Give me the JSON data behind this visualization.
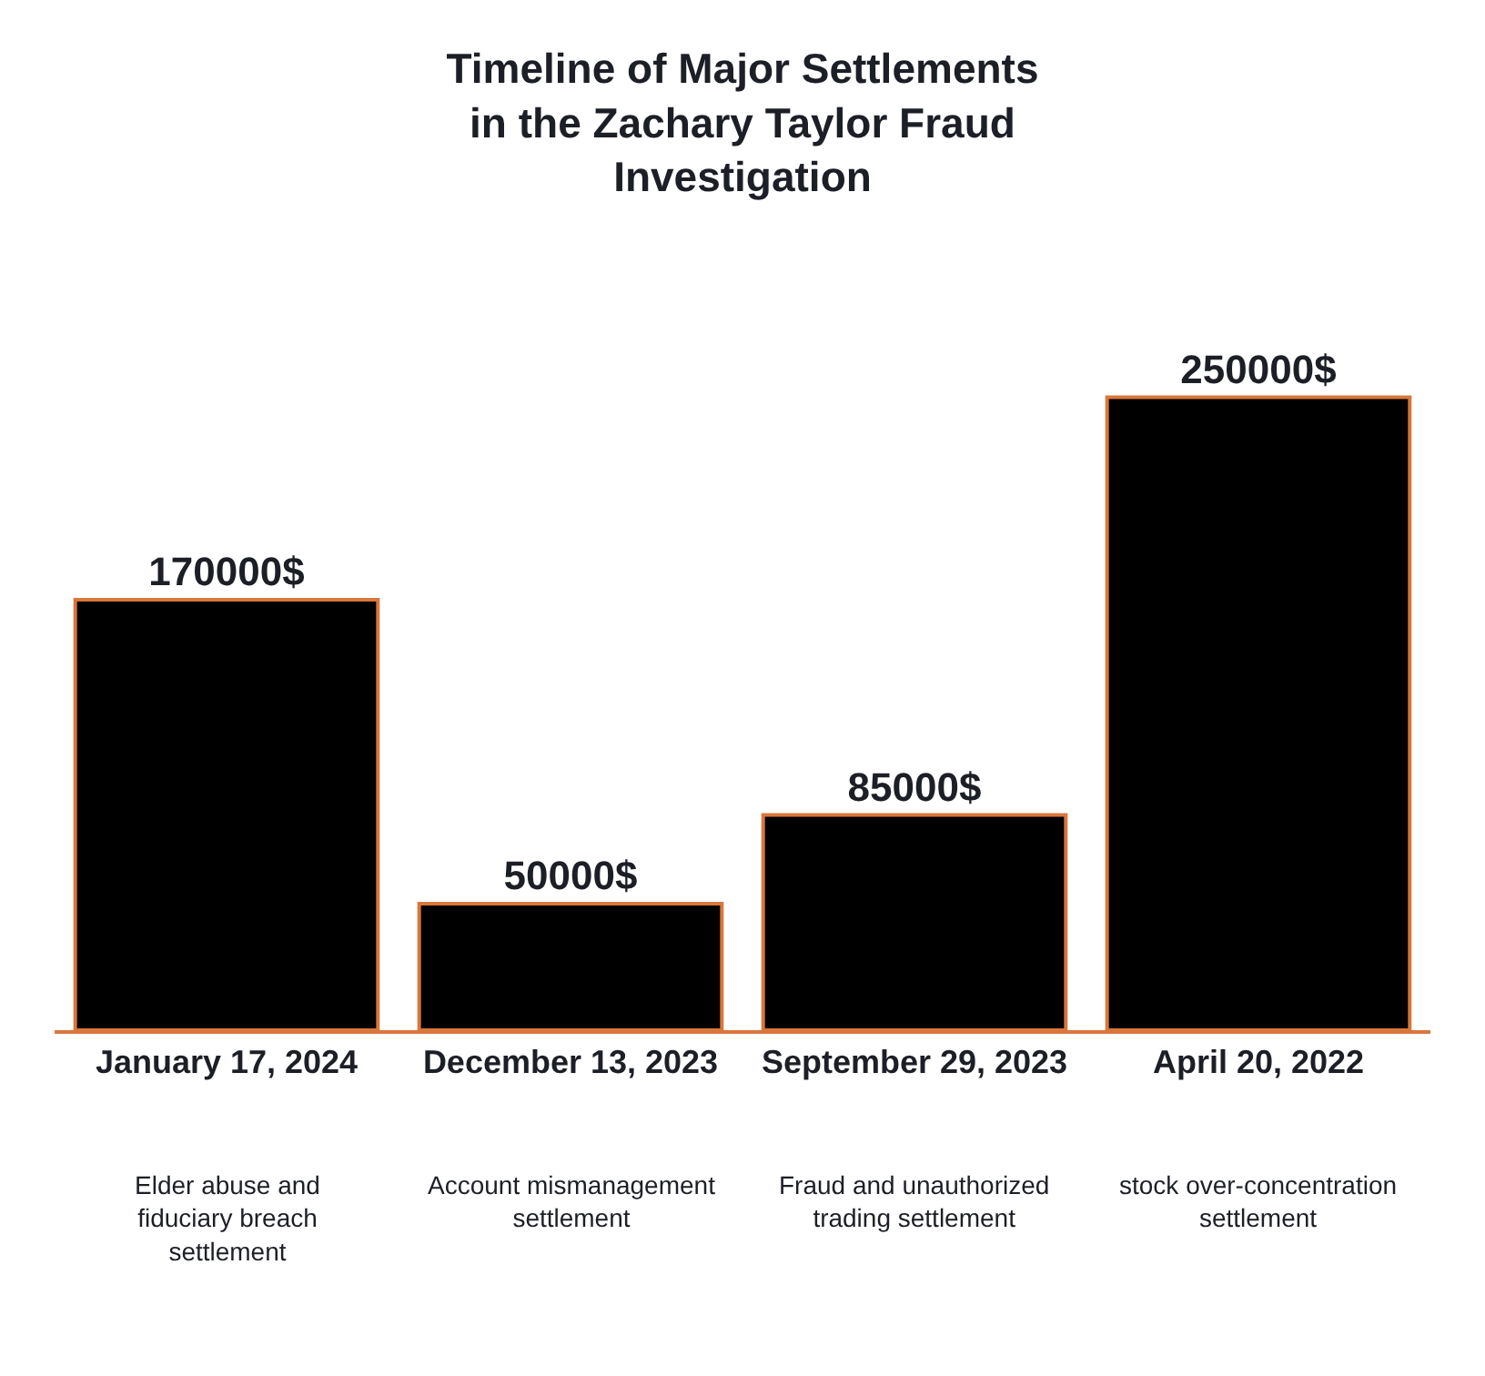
{
  "chart_data": {
    "type": "bar",
    "title": "Timeline of Major Settlements in the Zachary Taylor Fraud Investigation",
    "categories": [
      "January 17, 2024",
      "December 13, 2023",
      "September 29, 2023",
      "April 20, 2022"
    ],
    "values": [
      170000,
      50000,
      85000,
      250000
    ],
    "color": "#000000",
    "value_labels": [
      "170000$",
      "50000$",
      "85000$",
      "250000$"
    ],
    "tick_labels": "x",
    "annotations": [
      "Elder abuse and fiduciary breach settlement",
      "Account mismanagement settlement",
      "Fraud and unauthorized trading settlement",
      "stock over-concentration settlement"
    ]
  }
}
